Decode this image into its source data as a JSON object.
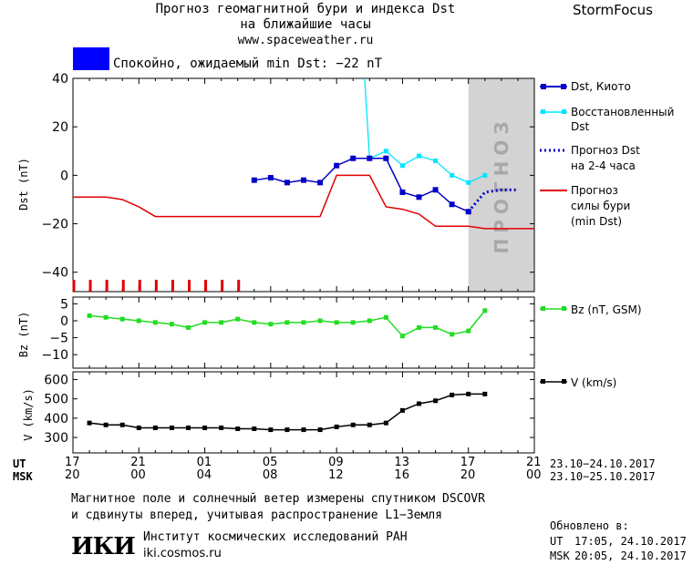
{
  "header": {
    "title_line1": "Прогноз геомагнитной бури и индекса Dst",
    "title_line2": "на ближайшие часы",
    "url": "www.spaceweather.ru",
    "brand": "StormFocus"
  },
  "status": {
    "text": "Спокойно, ожидаемый min Dst: −22 nT",
    "color": "#0000ff"
  },
  "colors": {
    "dst": "#0000c8",
    "restored": "#00e5ff",
    "storm": "#e00000",
    "bz": "#22dd22",
    "v": "#000000",
    "forecast_band": "#d3d3d3"
  },
  "forecast_label": "ПРОГНОЗ",
  "legend": {
    "dst": "Dst, Киото",
    "restored_1": "Восстановленный",
    "restored_2": "Dst",
    "forecast_1": "Прогноз Dst",
    "forecast_2": "на 2-4 часа",
    "storm_1": "Прогноз",
    "storm_2": "силы бури",
    "storm_3": "(min Dst)",
    "bz": "Bz (nT, GSM)",
    "v": "V (km/s)"
  },
  "axes": {
    "dst_ylabel": "Dst (nT)",
    "bz_ylabel": "Bz (nT)",
    "v_ylabel": "V (km/s)",
    "ut_label": "UT",
    "msk_label": "MSK",
    "ut_ticks": [
      "17",
      "21",
      "01",
      "05",
      "09",
      "13",
      "17",
      "21"
    ],
    "msk_ticks": [
      "20",
      "00",
      "04",
      "08",
      "12",
      "16",
      "20",
      "00"
    ],
    "ut_range": "23.10−24.10.2017",
    "msk_range": "23.10−25.10.2017"
  },
  "footer": {
    "note_1": "Магнитное поле и солнечный ветер измерены спутником DSCOVR",
    "note_2": "и сдвинуты вперед, учитывая распространение L1−Земля",
    "logo": "ИКИ",
    "institute": "Институт космических исследований РАН",
    "site": "iki.cosmos.ru",
    "updated_label": "Обновлено в:",
    "updated_ut_label": "UT",
    "updated_ut": "17:05, 24.10.2017",
    "updated_msk_label": "MSK",
    "updated_msk": "20:05, 24.10.2017"
  },
  "chart_data": [
    {
      "type": "line",
      "title": "Dst",
      "ylabel": "Dst (nT)",
      "xlim": [
        0,
        28
      ],
      "ylim": [
        -48,
        40
      ],
      "yticks": [
        40,
        20,
        0,
        -20,
        -40
      ],
      "x_unit": "hours from 17 UT 23.10.2017",
      "forecast_band": [
        24,
        28
      ],
      "series": [
        {
          "name": "Dst, Киото",
          "x": [
            11,
            12,
            13,
            14,
            15,
            16,
            17,
            18,
            19,
            20,
            21,
            22,
            23,
            24
          ],
          "y": [
            -2,
            -1,
            -3,
            -2,
            -3,
            4,
            7,
            7,
            7,
            -7,
            -9,
            -6,
            -12,
            -15
          ]
        },
        {
          "name": "Восстановленный Dst",
          "x": [
            18,
            19,
            20,
            21,
            22,
            23,
            24,
            25
          ],
          "y": [
            7,
            10,
            4,
            8,
            6,
            0,
            -3,
            0
          ],
          "lead_in": {
            "x": [
              17.7,
              18
            ],
            "y": [
              40,
              7
            ]
          }
        },
        {
          "name": "Прогноз Dst на 2-4 часа",
          "x": [
            24,
            25,
            26,
            27
          ],
          "y": [
            -15,
            -7,
            -6,
            -6
          ]
        },
        {
          "name": "Прогноз силы бури (min Dst)",
          "x": [
            0,
            1.5,
            2,
            3,
            4,
            5,
            6,
            7,
            8,
            9,
            10,
            11,
            12,
            13,
            14,
            15,
            16,
            17,
            18,
            19,
            20,
            21,
            22,
            23,
            24,
            25,
            26,
            27,
            28
          ],
          "y": [
            -9,
            -9,
            -9,
            -10,
            -13,
            -17,
            -17,
            -17,
            -17,
            -17,
            -17,
            -17,
            -17,
            -17,
            -17,
            -17,
            0,
            0,
            0,
            -13,
            -14,
            -16,
            -21,
            -21,
            -21,
            -22,
            -22,
            -22,
            -22
          ]
        }
      ],
      "red_marker_x": [
        0,
        1,
        2,
        3,
        4,
        5,
        6,
        7,
        8,
        9,
        10
      ]
    },
    {
      "type": "line",
      "title": "Bz",
      "ylabel": "Bz (nT)",
      "xlim": [
        0,
        28
      ],
      "ylim": [
        -14,
        7
      ],
      "yticks": [
        5,
        0,
        -5,
        -10
      ],
      "series": [
        {
          "name": "Bz (nT, GSM)",
          "x": [
            1,
            2,
            3,
            4,
            5,
            6,
            7,
            8,
            9,
            10,
            11,
            12,
            13,
            14,
            15,
            16,
            17,
            18,
            19,
            20,
            21,
            22,
            23,
            24,
            25
          ],
          "y": [
            1.5,
            1,
            0.5,
            0,
            -0.5,
            -1,
            -2,
            -0.5,
            -0.5,
            0.5,
            -0.5,
            -1,
            -0.5,
            -0.5,
            0,
            -0.5,
            -0.5,
            0,
            1,
            -4.5,
            -2,
            -2,
            -4,
            -3,
            3
          ]
        }
      ]
    },
    {
      "type": "line",
      "title": "V",
      "ylabel": "V (km/s)",
      "xlim": [
        0,
        28
      ],
      "ylim": [
        220,
        640
      ],
      "yticks": [
        600,
        500,
        400,
        300
      ],
      "series": [
        {
          "name": "V (km/s)",
          "x": [
            1,
            2,
            3,
            4,
            5,
            6,
            7,
            8,
            9,
            10,
            11,
            12,
            13,
            14,
            15,
            16,
            17,
            18,
            19,
            20,
            21,
            22,
            23,
            24,
            25
          ],
          "y": [
            375,
            365,
            365,
            350,
            350,
            350,
            350,
            350,
            350,
            345,
            345,
            340,
            340,
            340,
            340,
            355,
            365,
            365,
            375,
            440,
            475,
            490,
            520,
            525,
            525
          ]
        }
      ]
    }
  ]
}
